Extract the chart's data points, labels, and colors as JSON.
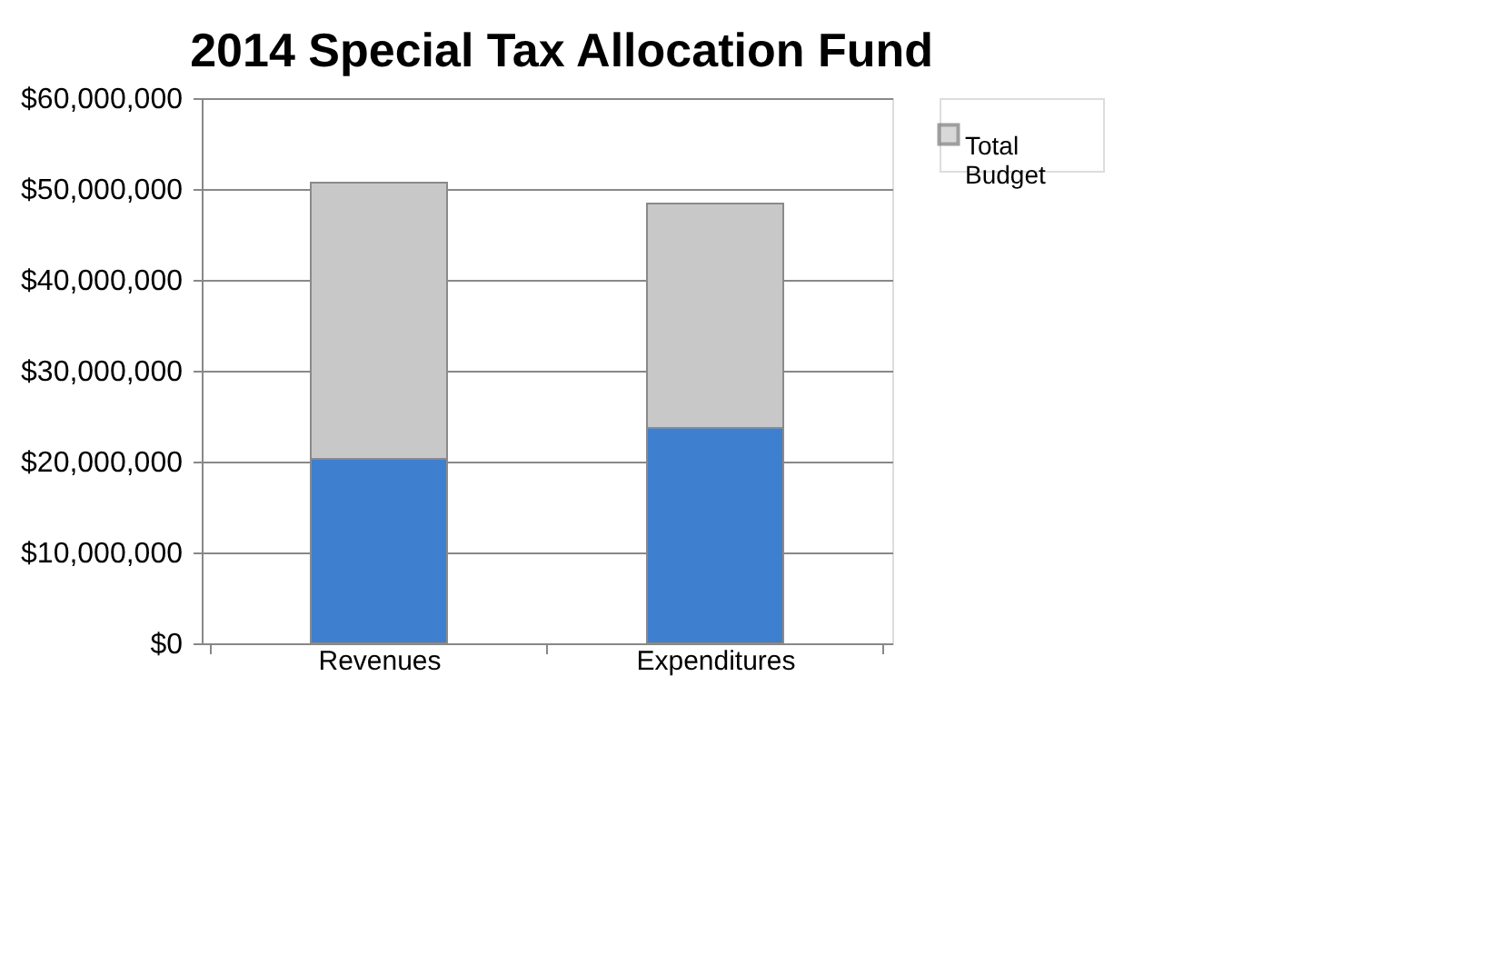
{
  "chart_data": {
    "type": "bar",
    "title": "2014 Special Tax Allocation Fund",
    "stacked": true,
    "categories": [
      "Revenues",
      "Expenditures"
    ],
    "series": [
      {
        "color": "#3f7fcf",
        "values": [
          20300000,
          23700000
        ]
      },
      {
        "name": "Total Budget",
        "color": "#c8c8c8",
        "values": [
          30400000,
          24700000
        ]
      }
    ],
    "ylim": [
      0,
      60000000
    ],
    "yticks": [
      {
        "value": 0,
        "label": "$0"
      },
      {
        "value": 10000000,
        "label": "$10,000,000"
      },
      {
        "value": 20000000,
        "label": "$20,000,000"
      },
      {
        "value": 30000000,
        "label": "$30,000,000"
      },
      {
        "value": 40000000,
        "label": "$40,000,000"
      },
      {
        "value": 50000000,
        "label": "$50,000,000"
      },
      {
        "value": 60000000,
        "label": "$60,000,000"
      }
    ],
    "grid": "y",
    "legend": "right"
  }
}
